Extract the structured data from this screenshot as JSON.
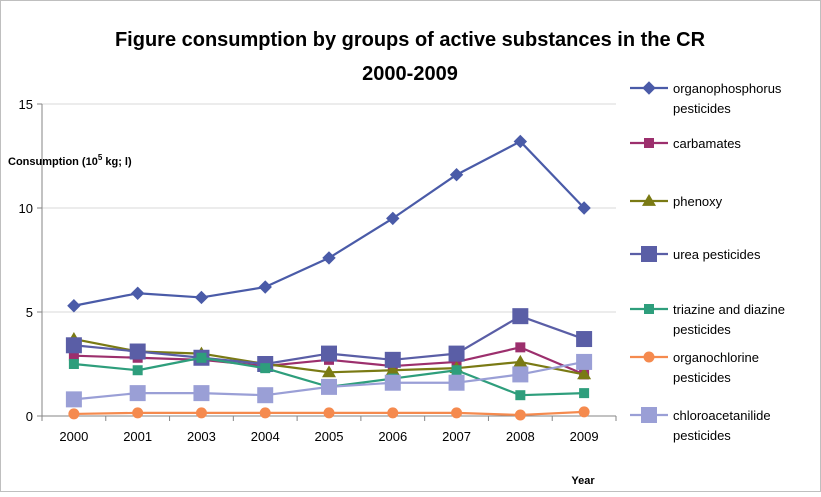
{
  "chart_data": {
    "type": "line",
    "title_line1": "Figure consumption by groups of active substances in the  CR",
    "title_line2": "2000-2009",
    "ylabel_main": "Consumption (10",
    "ylabel_sup": "5",
    "ylabel_tail": " kg; l)",
    "xlabel": "Year",
    "categories": [
      "2000",
      "2001",
      "2003",
      "2004",
      "2005",
      "2006",
      "2007",
      "2008",
      "2009"
    ],
    "y_ticks": [
      "0",
      "5",
      "10",
      "15"
    ],
    "ylim": [
      0,
      15
    ],
    "grid": "horizontal",
    "legend_position": "right",
    "series": [
      {
        "name_lines": [
          "organophosphorus",
          "pesticides"
        ],
        "color": "#4A5BA8",
        "marker": "diamond",
        "values": [
          5.3,
          5.9,
          5.7,
          6.2,
          7.6,
          9.5,
          11.6,
          13.2,
          10.0
        ]
      },
      {
        "name_lines": [
          "carbamates"
        ],
        "color": "#9C2F6D",
        "marker": "square",
        "values": [
          2.9,
          2.8,
          2.7,
          2.4,
          2.7,
          2.4,
          2.6,
          3.3,
          2.0
        ]
      },
      {
        "name_lines": [
          "phenoxy"
        ],
        "color": "#7A7A14",
        "marker": "triangle",
        "values": [
          3.7,
          3.1,
          3.0,
          2.5,
          2.1,
          2.2,
          2.3,
          2.6,
          2.0
        ]
      },
      {
        "name_lines": [
          "urea pesticides"
        ],
        "color": "#5A5EA6",
        "marker": "bigsquare",
        "values": [
          3.4,
          3.1,
          2.8,
          2.5,
          3.0,
          2.7,
          3.0,
          4.8,
          3.7
        ]
      },
      {
        "name_lines": [
          "triazine and diazine",
          "pesticides"
        ],
        "color": "#2E9E7C",
        "marker": "square",
        "values": [
          2.5,
          2.2,
          2.8,
          2.3,
          1.4,
          1.8,
          2.2,
          1.0,
          1.1
        ]
      },
      {
        "name_lines": [
          "organochlorine",
          "pesticides"
        ],
        "color": "#F58A4E",
        "marker": "circle",
        "values": [
          0.1,
          0.15,
          0.15,
          0.15,
          0.15,
          0.15,
          0.15,
          0.05,
          0.2
        ]
      },
      {
        "name_lines": [
          "chloroacetanilide",
          "pesticides"
        ],
        "color": "#9A9FD6",
        "marker": "bigsquare",
        "values": [
          0.8,
          1.1,
          1.1,
          1.0,
          1.4,
          1.6,
          1.6,
          2.0,
          2.6
        ]
      }
    ]
  }
}
